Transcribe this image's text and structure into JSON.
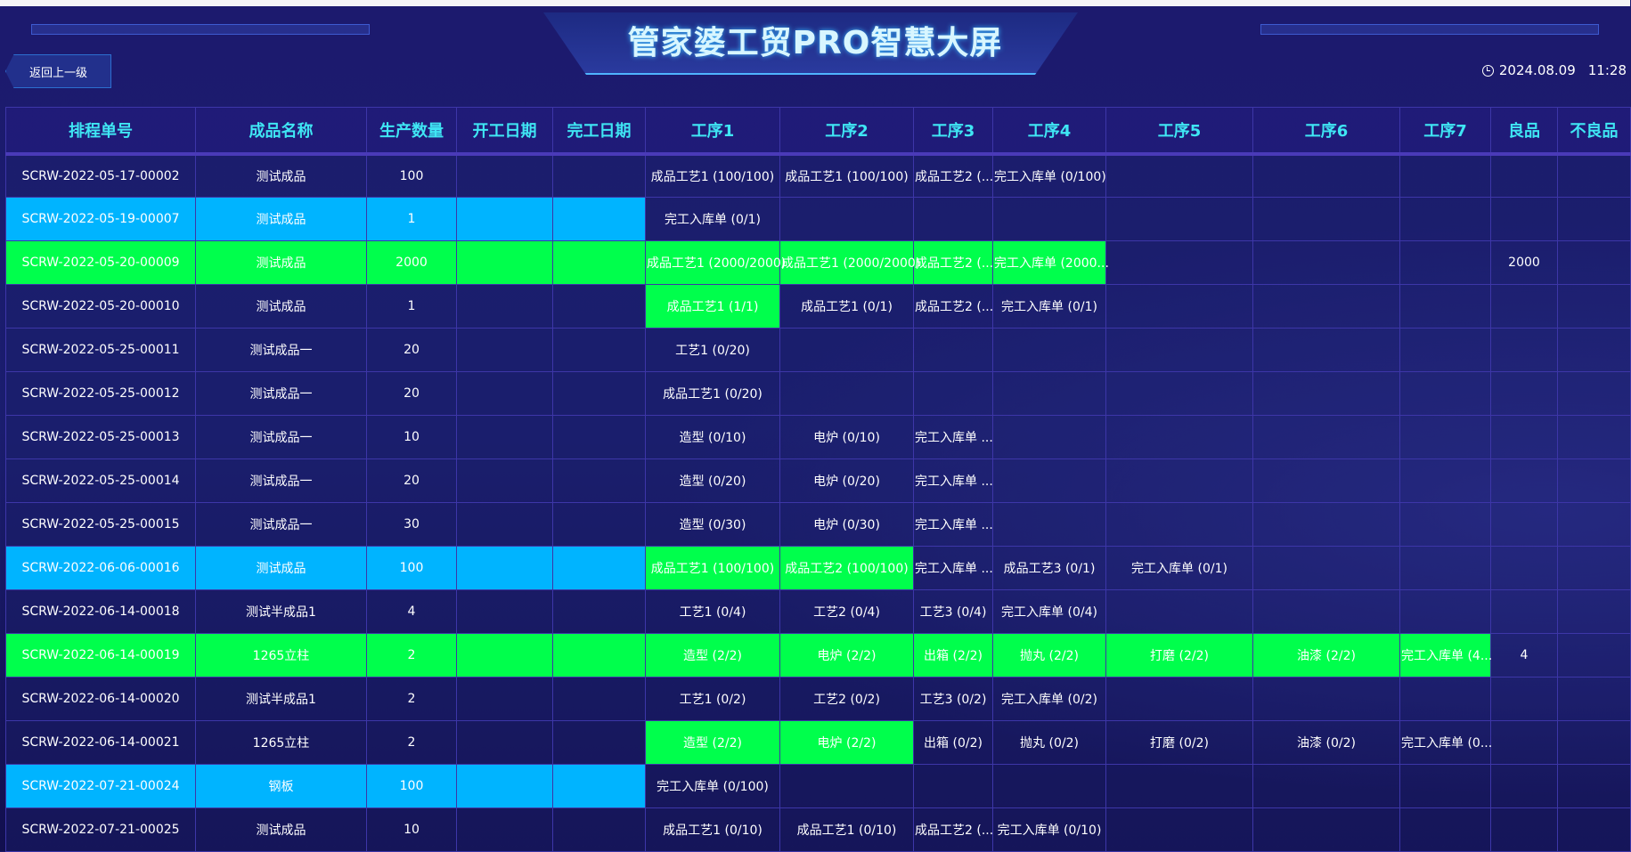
{
  "header": {
    "title": "管家婆工贸PRO智慧大屏",
    "back_label": "返回上一级",
    "date": "2024.08.09",
    "time": "11:28"
  },
  "colors": {
    "background": "#1a1d6e",
    "header_text": "#3fe6f4",
    "highlight_blue": "#00b4ff",
    "highlight_green": "#00ff4c",
    "grid": "#3d36a8"
  },
  "table": {
    "columns": [
      "排程单号",
      "成品名称",
      "生产数量",
      "开工日期",
      "完工日期",
      "工序1",
      "工序2",
      "工序3",
      "工序4",
      "工序5",
      "工序6",
      "工序7",
      "良品",
      "不良品"
    ],
    "rows": [
      {
        "id": "SCRW-2022-05-17-00002",
        "name": "测试成品",
        "qty": "100",
        "start": "",
        "end": "",
        "row_hl": "",
        "steps": [
          "成品工艺1 (100/100)",
          "成品工艺1 (100/100)",
          "成品工艺2 (...",
          "完工入库单 (0/100)",
          "",
          "",
          ""
        ],
        "step_done": [
          0,
          0,
          0,
          0,
          0,
          0,
          0
        ],
        "good": "",
        "bad": ""
      },
      {
        "id": "SCRW-2022-05-19-00007",
        "name": "测试成品",
        "qty": "1",
        "start": "",
        "end": "",
        "row_hl": "blue",
        "steps": [
          "完工入库单 (0/1)",
          "",
          "",
          "",
          "",
          "",
          ""
        ],
        "step_done": [
          0,
          0,
          0,
          0,
          0,
          0,
          0
        ],
        "good": "",
        "bad": ""
      },
      {
        "id": "SCRW-2022-05-20-00009",
        "name": "测试成品",
        "qty": "2000",
        "start": "",
        "end": "",
        "row_hl": "green",
        "steps": [
          "成品工艺1 (2000/2000)",
          "成品工艺1 (2000/2000)",
          "成品工艺2 (...",
          "完工入库单 (2000...",
          "",
          "",
          ""
        ],
        "step_done": [
          1,
          1,
          1,
          1,
          0,
          0,
          0
        ],
        "good": "2000",
        "bad": ""
      },
      {
        "id": "SCRW-2022-05-20-00010",
        "name": "测试成品",
        "qty": "1",
        "start": "",
        "end": "",
        "row_hl": "",
        "steps": [
          "成品工艺1 (1/1)",
          "成品工艺1 (0/1)",
          "成品工艺2 (...",
          "完工入库单 (0/1)",
          "",
          "",
          ""
        ],
        "step_done": [
          1,
          0,
          0,
          0,
          0,
          0,
          0
        ],
        "good": "",
        "bad": ""
      },
      {
        "id": "SCRW-2022-05-25-00011",
        "name": "测试成品一",
        "qty": "20",
        "start": "",
        "end": "",
        "row_hl": "",
        "steps": [
          "工艺1 (0/20)",
          "",
          "",
          "",
          "",
          "",
          ""
        ],
        "step_done": [
          0,
          0,
          0,
          0,
          0,
          0,
          0
        ],
        "good": "",
        "bad": ""
      },
      {
        "id": "SCRW-2022-05-25-00012",
        "name": "测试成品一",
        "qty": "20",
        "start": "",
        "end": "",
        "row_hl": "",
        "steps": [
          "成品工艺1 (0/20)",
          "",
          "",
          "",
          "",
          "",
          ""
        ],
        "step_done": [
          0,
          0,
          0,
          0,
          0,
          0,
          0
        ],
        "good": "",
        "bad": ""
      },
      {
        "id": "SCRW-2022-05-25-00013",
        "name": "测试成品一",
        "qty": "10",
        "start": "",
        "end": "",
        "row_hl": "",
        "steps": [
          "造型 (0/10)",
          "电炉 (0/10)",
          "完工入库单 ...",
          "",
          "",
          "",
          ""
        ],
        "step_done": [
          0,
          0,
          0,
          0,
          0,
          0,
          0
        ],
        "good": "",
        "bad": ""
      },
      {
        "id": "SCRW-2022-05-25-00014",
        "name": "测试成品一",
        "qty": "20",
        "start": "",
        "end": "",
        "row_hl": "",
        "steps": [
          "造型 (0/20)",
          "电炉 (0/20)",
          "完工入库单 ...",
          "",
          "",
          "",
          ""
        ],
        "step_done": [
          0,
          0,
          0,
          0,
          0,
          0,
          0
        ],
        "good": "",
        "bad": ""
      },
      {
        "id": "SCRW-2022-05-25-00015",
        "name": "测试成品一",
        "qty": "30",
        "start": "",
        "end": "",
        "row_hl": "",
        "steps": [
          "造型 (0/30)",
          "电炉 (0/30)",
          "完工入库单 ...",
          "",
          "",
          "",
          ""
        ],
        "step_done": [
          0,
          0,
          0,
          0,
          0,
          0,
          0
        ],
        "good": "",
        "bad": ""
      },
      {
        "id": "SCRW-2022-06-06-00016",
        "name": "测试成品",
        "qty": "100",
        "start": "",
        "end": "",
        "row_hl": "blue",
        "steps": [
          "成品工艺1 (100/100)",
          "成品工艺2 (100/100)",
          "完工入库单 ...",
          "成品工艺3 (0/1)",
          "完工入库单 (0/1)",
          "",
          ""
        ],
        "step_done": [
          1,
          1,
          0,
          0,
          0,
          0,
          0
        ],
        "good": "",
        "bad": ""
      },
      {
        "id": "SCRW-2022-06-14-00018",
        "name": "测试半成品1",
        "qty": "4",
        "start": "",
        "end": "",
        "row_hl": "",
        "steps": [
          "工艺1 (0/4)",
          "工艺2 (0/4)",
          "工艺3 (0/4)",
          "完工入库单 (0/4)",
          "",
          "",
          ""
        ],
        "step_done": [
          0,
          0,
          0,
          0,
          0,
          0,
          0
        ],
        "good": "",
        "bad": ""
      },
      {
        "id": "SCRW-2022-06-14-00019",
        "name": "1265立柱",
        "qty": "2",
        "start": "",
        "end": "",
        "row_hl": "green",
        "steps": [
          "造型 (2/2)",
          "电炉 (2/2)",
          "出箱 (2/2)",
          "抛丸 (2/2)",
          "打磨 (2/2)",
          "油漆 (2/2)",
          "完工入库单 (4..."
        ],
        "step_done": [
          1,
          1,
          1,
          1,
          1,
          1,
          1
        ],
        "good": "4",
        "bad": ""
      },
      {
        "id": "SCRW-2022-06-14-00020",
        "name": "测试半成品1",
        "qty": "2",
        "start": "",
        "end": "",
        "row_hl": "",
        "steps": [
          "工艺1 (0/2)",
          "工艺2 (0/2)",
          "工艺3 (0/2)",
          "完工入库单 (0/2)",
          "",
          "",
          ""
        ],
        "step_done": [
          0,
          0,
          0,
          0,
          0,
          0,
          0
        ],
        "good": "",
        "bad": ""
      },
      {
        "id": "SCRW-2022-06-14-00021",
        "name": "1265立柱",
        "qty": "2",
        "start": "",
        "end": "",
        "row_hl": "",
        "steps": [
          "造型 (2/2)",
          "电炉 (2/2)",
          "出箱 (0/2)",
          "抛丸 (0/2)",
          "打磨 (0/2)",
          "油漆 (0/2)",
          "完工入库单 (0..."
        ],
        "step_done": [
          1,
          1,
          0,
          0,
          0,
          0,
          0
        ],
        "good": "",
        "bad": ""
      },
      {
        "id": "SCRW-2022-07-21-00024",
        "name": "钢板",
        "qty": "100",
        "start": "",
        "end": "",
        "row_hl": "blue",
        "steps": [
          "完工入库单 (0/100)",
          "",
          "",
          "",
          "",
          "",
          ""
        ],
        "step_done": [
          0,
          0,
          0,
          0,
          0,
          0,
          0
        ],
        "good": "",
        "bad": ""
      },
      {
        "id": "SCRW-2022-07-21-00025",
        "name": "测试成品",
        "qty": "10",
        "start": "",
        "end": "",
        "row_hl": "",
        "steps": [
          "成品工艺1 (0/10)",
          "成品工艺1 (0/10)",
          "成品工艺2 (...",
          "完工入库单 (0/10)",
          "",
          "",
          ""
        ],
        "step_done": [
          0,
          0,
          0,
          0,
          0,
          0,
          0
        ],
        "good": "",
        "bad": ""
      }
    ]
  }
}
